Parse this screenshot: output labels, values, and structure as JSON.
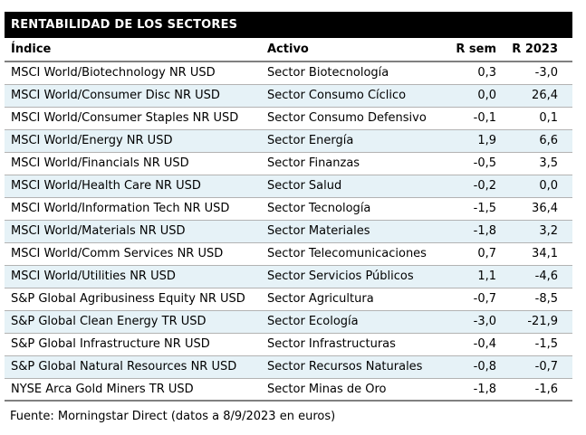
{
  "title": "RENTABILIDAD DE LOS SECTORES",
  "columns": [
    "Índice",
    "Activo",
    "R sem",
    "R 2023"
  ],
  "rows": [
    {
      "indice": "MSCI World/Biotechnology NR USD",
      "activo": "Sector Biotecnología",
      "r_sem": "0,3",
      "r_2023": "-3,0"
    },
    {
      "indice": "MSCI World/Consumer Disc NR USD",
      "activo": "Sector Consumo Cíclico",
      "r_sem": "0,0",
      "r_2023": "26,4"
    },
    {
      "indice": "MSCI World/Consumer Staples NR USD",
      "activo": "Sector Consumo Defensivo",
      "r_sem": "-0,1",
      "r_2023": "0,1"
    },
    {
      "indice": "MSCI World/Energy NR USD",
      "activo": "Sector Energía",
      "r_sem": "1,9",
      "r_2023": "6,6"
    },
    {
      "indice": "MSCI World/Financials NR USD",
      "activo": "Sector Finanzas",
      "r_sem": "-0,5",
      "r_2023": "3,5"
    },
    {
      "indice": "MSCI World/Health Care NR USD",
      "activo": "Sector Salud",
      "r_sem": "-0,2",
      "r_2023": "0,0"
    },
    {
      "indice": "MSCI World/Information Tech NR USD",
      "activo": "Sector Tecnología",
      "r_sem": "-1,5",
      "r_2023": "36,4"
    },
    {
      "indice": "MSCI World/Materials NR USD",
      "activo": "Sector Materiales",
      "r_sem": "-1,8",
      "r_2023": "3,2"
    },
    {
      "indice": "MSCI World/Comm Services NR USD",
      "activo": "Sector Telecomunicaciones",
      "r_sem": "0,7",
      "r_2023": "34,1"
    },
    {
      "indice": "MSCI World/Utilities NR USD",
      "activo": "Sector Servicios Públicos",
      "r_sem": "1,1",
      "r_2023": "-4,6"
    },
    {
      "indice": "S&P Global Agribusiness Equity NR USD",
      "activo": "Sector Agricultura",
      "r_sem": "-0,7",
      "r_2023": "-8,5"
    },
    {
      "indice": "S&P Global Clean Energy TR USD",
      "activo": "Sector Ecología",
      "r_sem": "-3,0",
      "r_2023": "-21,9"
    },
    {
      "indice": "S&P Global Infrastructure NR USD",
      "activo": "Sector Infrastructuras",
      "r_sem": "-0,4",
      "r_2023": "-1,5"
    },
    {
      "indice": "S&P Global Natural Resources NR USD",
      "activo": "Sector Recursos Naturales",
      "r_sem": "-0,8",
      "r_2023": "-0,7"
    },
    {
      "indice": "NYSE Arca Gold Miners TR USD",
      "activo": "Sector Minas de Oro",
      "r_sem": "-1,8",
      "r_2023": "-1,6"
    }
  ],
  "footer": "Fuente: Morningstar Direct (datos a 8/9/2023 en euros)",
  "colors": {
    "title_bg": "#000000",
    "title_text": "#ffffff",
    "alt_row_bg": "#e6f2f7",
    "rule_dark": "#808080",
    "rule_light": "#b3b3b3"
  }
}
